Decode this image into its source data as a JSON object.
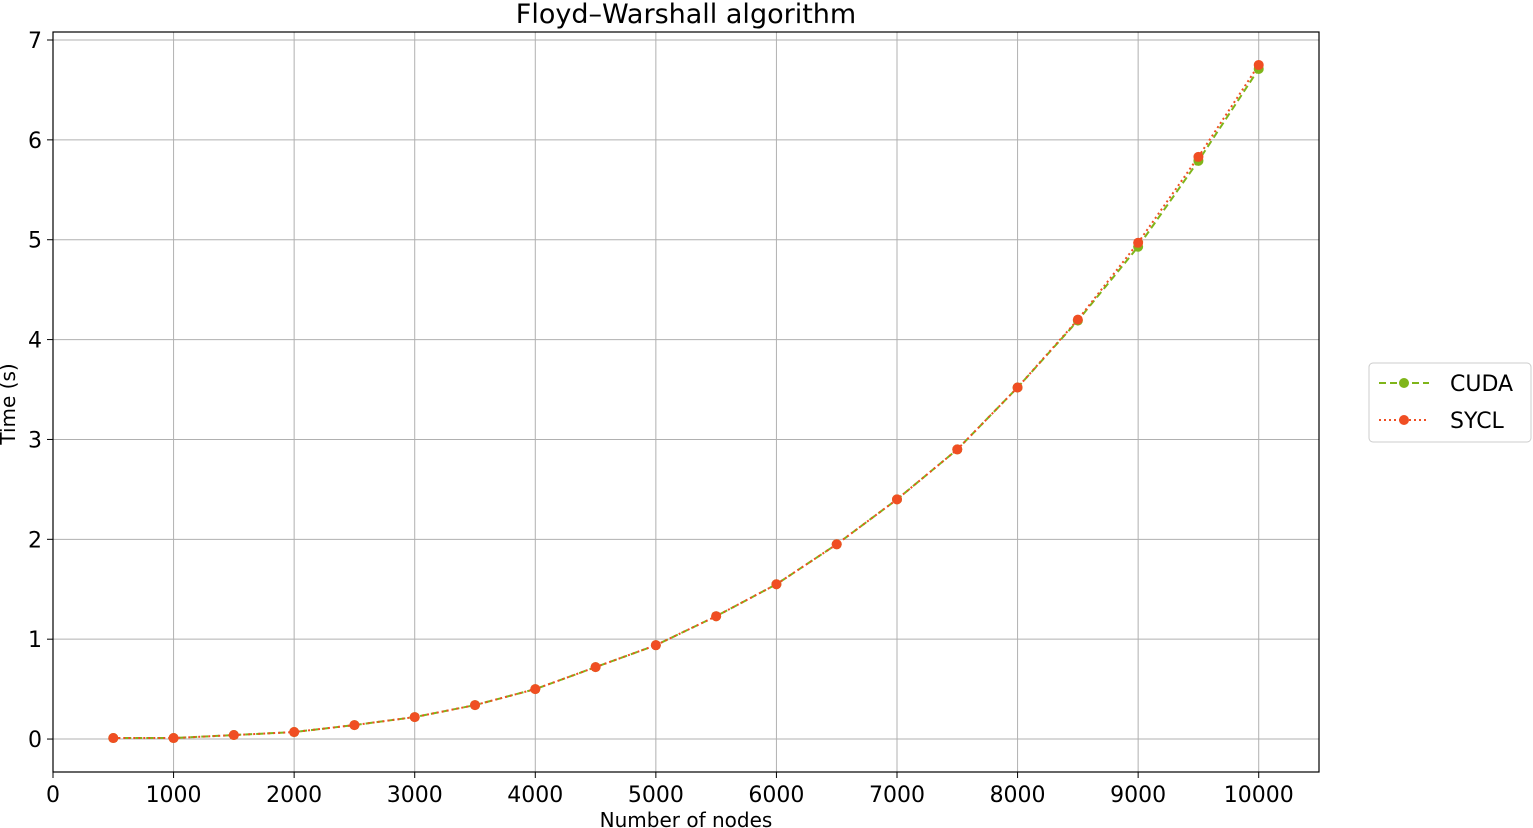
{
  "chart_data": {
    "type": "line",
    "title": "Floyd–Warshall algorithm",
    "xlabel": "Number of nodes",
    "ylabel": "Time (s)",
    "xlim": [
      0,
      10500
    ],
    "ylim": [
      -0.33,
      7.08
    ],
    "xticks": [
      0,
      1000,
      2000,
      3000,
      4000,
      5000,
      6000,
      7000,
      8000,
      9000,
      10000
    ],
    "yticks": [
      0,
      1,
      2,
      3,
      4,
      5,
      6,
      7
    ],
    "grid": true,
    "legend_position": "outside-right",
    "x": [
      500,
      1000,
      1500,
      2000,
      2500,
      3000,
      3500,
      4000,
      4500,
      5000,
      5500,
      6000,
      6500,
      7000,
      7500,
      8000,
      8500,
      9000,
      9500,
      10000
    ],
    "series": [
      {
        "name": "CUDA",
        "color": "#7fb51a",
        "line_style": "dashed",
        "marker": "circle",
        "values": [
          0.01,
          0.01,
          0.04,
          0.07,
          0.14,
          0.22,
          0.34,
          0.5,
          0.72,
          0.94,
          1.23,
          1.55,
          1.95,
          2.4,
          2.9,
          3.52,
          4.19,
          4.93,
          5.79,
          6.71
        ]
      },
      {
        "name": "SYCL",
        "color": "#f04e23",
        "line_style": "dotted",
        "marker": "circle",
        "values": [
          0.01,
          0.01,
          0.04,
          0.07,
          0.14,
          0.22,
          0.34,
          0.5,
          0.72,
          0.94,
          1.23,
          1.55,
          1.95,
          2.4,
          2.9,
          3.52,
          4.2,
          4.97,
          5.83,
          6.75
        ]
      }
    ]
  }
}
